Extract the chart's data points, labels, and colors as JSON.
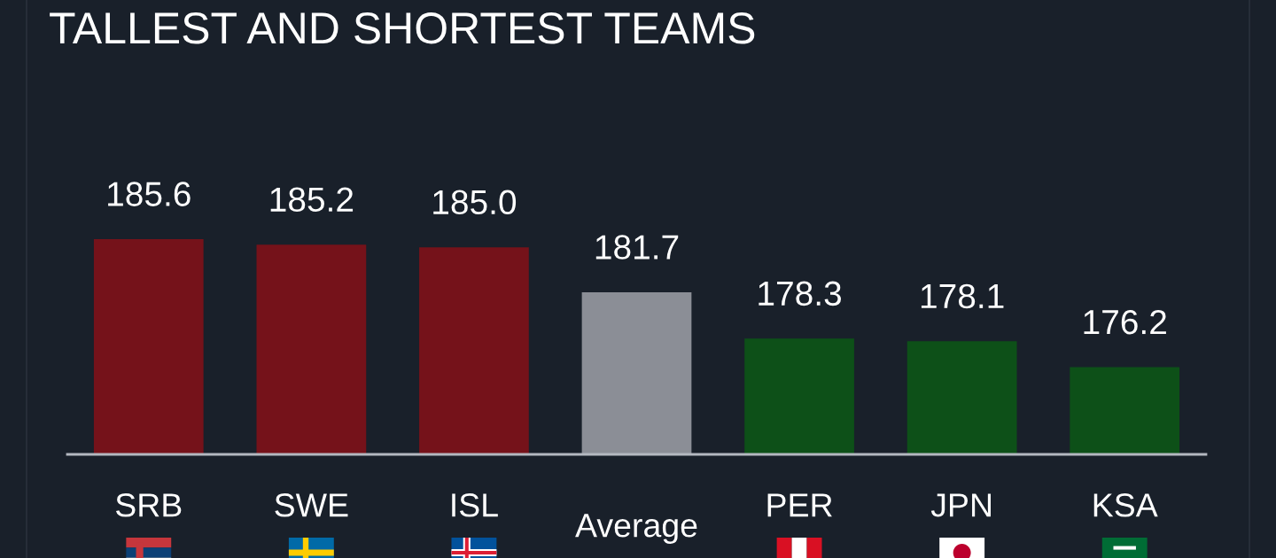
{
  "chart_data": {
    "type": "bar",
    "title": "TALLEST AND SHORTEST TEAMS",
    "categories": [
      "SRB",
      "SWE",
      "ISL",
      "Average",
      "PER",
      "JPN",
      "KSA"
    ],
    "values": [
      185.6,
      185.2,
      185.0,
      181.7,
      178.3,
      178.1,
      176.2
    ],
    "value_labels": [
      "185.6",
      "185.2",
      "185.0",
      "181.7",
      "178.3",
      "178.1",
      "176.2"
    ],
    "colors": [
      "#75121a",
      "#75121a",
      "#75121a",
      "#8b8e96",
      "#0d5018",
      "#0d5018",
      "#0d5018"
    ],
    "ylim": [
      169.8,
      185.6
    ],
    "tick_labels": "x"
  }
}
